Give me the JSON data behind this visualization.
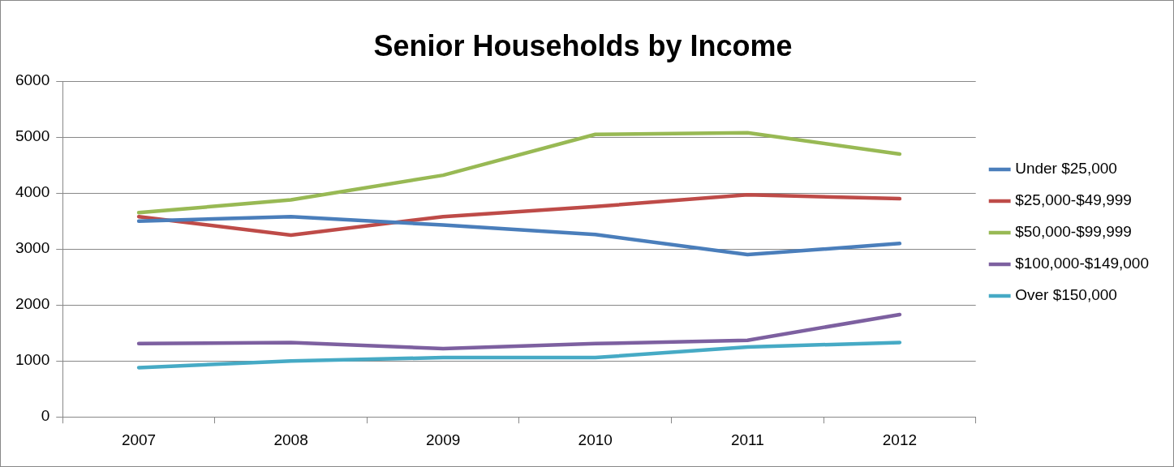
{
  "chart_data": {
    "type": "line",
    "title": "Senior Households by Income",
    "categories": [
      "2007",
      "2008",
      "2009",
      "2010",
      "2011",
      "2012"
    ],
    "series": [
      {
        "name": "Under $25,000",
        "color": "#4a7ebb",
        "values": [
          3500,
          3580,
          3430,
          3260,
          2900,
          3100
        ]
      },
      {
        "name": "$25,000-$49,999",
        "color": "#be4b48",
        "values": [
          3580,
          3250,
          3580,
          3760,
          3970,
          3900
        ]
      },
      {
        "name": "$50,000-$99,999",
        "color": "#98b954",
        "values": [
          3650,
          3880,
          4320,
          5050,
          5080,
          4700
        ]
      },
      {
        "name": "$100,000-$149,000",
        "color": "#7d60a0",
        "values": [
          1310,
          1330,
          1220,
          1310,
          1370,
          1830
        ]
      },
      {
        "name": "Over $150,000",
        "color": "#46aac5",
        "values": [
          880,
          1000,
          1060,
          1060,
          1250,
          1330
        ]
      }
    ],
    "ylim": [
      0,
      6000
    ],
    "yticks": [
      0,
      1000,
      2000,
      3000,
      4000,
      5000,
      6000
    ],
    "grid": "y",
    "legend": "right",
    "marker": "none",
    "line_style": "solid"
  }
}
